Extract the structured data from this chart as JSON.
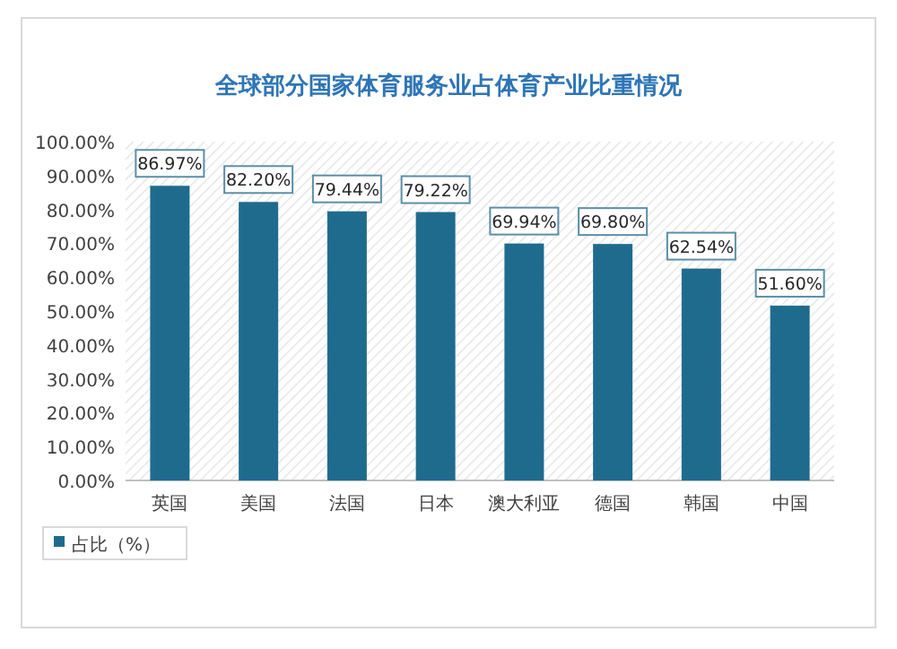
{
  "chart_data": {
    "type": "bar",
    "title": "全球部分国家体育服务业占体育产业比重情况",
    "categories": [
      "英国",
      "美国",
      "法国",
      "日本",
      "澳大利亚",
      "德国",
      "韩国",
      "中国"
    ],
    "series": [
      {
        "name": "占比（%）",
        "color": "#1f6b8e",
        "values": [
          86.97,
          82.2,
          79.44,
          79.22,
          69.94,
          69.8,
          62.54,
          51.6
        ],
        "value_labels": [
          "86.97%",
          "82.20%",
          "79.44%",
          "79.22%",
          "69.94%",
          "69.80%",
          "62.54%",
          "51.60%"
        ]
      }
    ],
    "ylim": [
      0,
      100
    ],
    "yticks": [
      {
        "value": 0,
        "label": "0.00%"
      },
      {
        "value": 10,
        "label": "10.00%"
      },
      {
        "value": 20,
        "label": "20.00%"
      },
      {
        "value": 30,
        "label": "30.00%"
      },
      {
        "value": 40,
        "label": "40.00%"
      },
      {
        "value": 50,
        "label": "50.00%"
      },
      {
        "value": 60,
        "label": "60.00%"
      },
      {
        "value": 70,
        "label": "70.00%"
      },
      {
        "value": 80,
        "label": "80.00%"
      },
      {
        "value": 90,
        "label": "90.00%"
      },
      {
        "value": 100,
        "label": "100.00%"
      }
    ],
    "grid": false,
    "legend": "bottom left"
  }
}
